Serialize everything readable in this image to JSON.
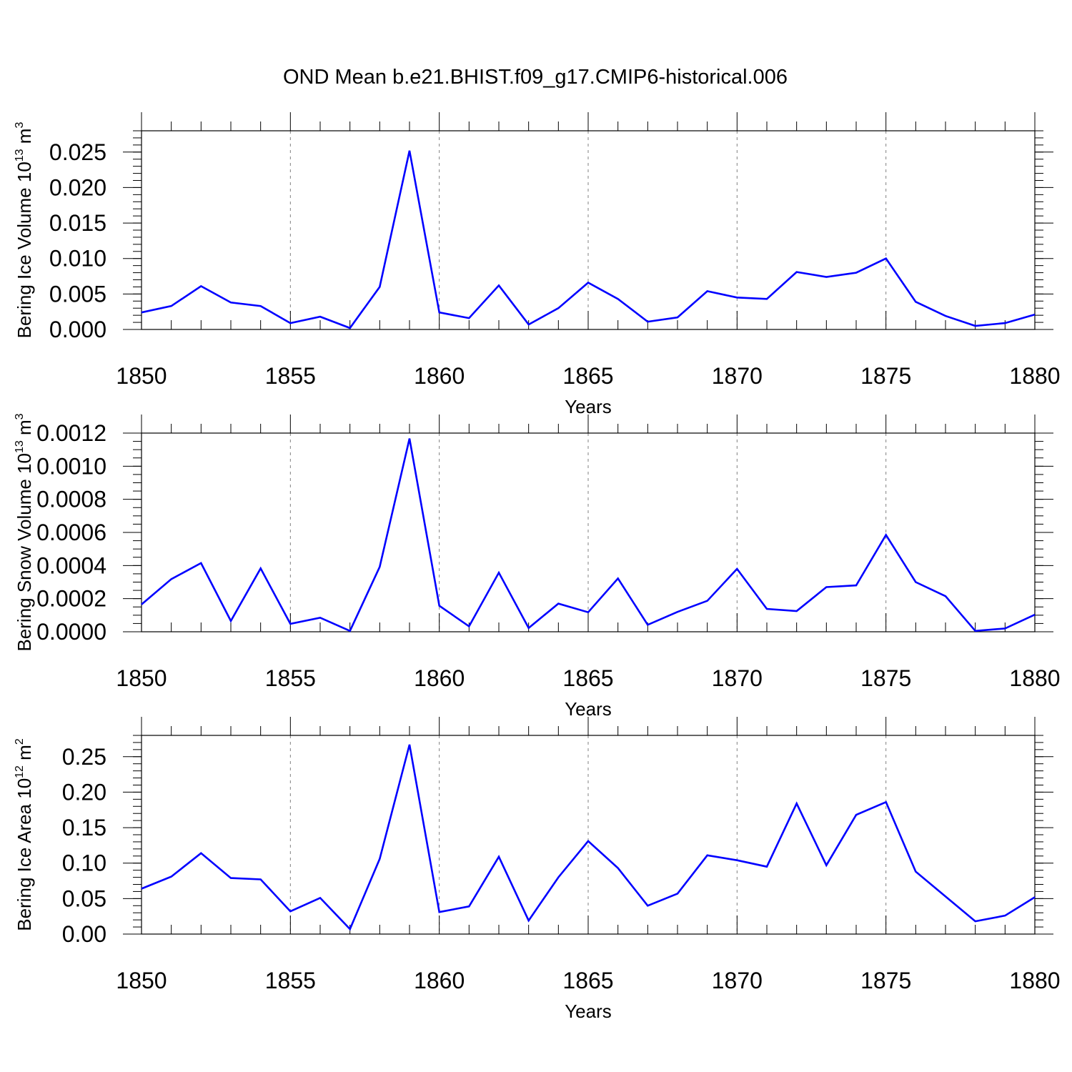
{
  "figure_title": "OND Mean b.e21.BHIST.f09_g17.CMIP6-historical.006",
  "colors": {
    "line": "#0000ff",
    "axis": "#000000",
    "grid": "#808080"
  },
  "chart_data": [
    {
      "type": "line",
      "title": "OND Mean b.e21.BHIST.f09_g17.CMIP6-historical.006",
      "xlabel": "Years",
      "ylabel": {
        "main": "Bering Ice Volume 10",
        "exp": "13",
        "unit": " m",
        "unit_exp": "3"
      },
      "xlim": [
        1850,
        1880
      ],
      "xticks": [
        1850,
        1855,
        1860,
        1865,
        1870,
        1875,
        1880
      ],
      "ylim": [
        0,
        0.028
      ],
      "yticks": [
        0,
        0.005,
        0.01,
        0.015,
        0.02,
        0.025
      ],
      "ytick_labels": [
        "0.000",
        "0.005",
        "0.010",
        "0.015",
        "0.020",
        "0.025"
      ],
      "yminor_step": 0.001,
      "grid_x": true,
      "series": [
        {
          "name": "Bering Ice Volume",
          "x": [
            1850,
            1851,
            1852,
            1853,
            1854,
            1855,
            1856,
            1857,
            1858,
            1859,
            1860,
            1861,
            1862,
            1863,
            1864,
            1865,
            1866,
            1867,
            1868,
            1869,
            1870,
            1871,
            1872,
            1873,
            1874,
            1875,
            1876,
            1877,
            1878,
            1879,
            1880
          ],
          "values": [
            0.0024,
            0.0033,
            0.0061,
            0.0038,
            0.0033,
            0.0009,
            0.0018,
            0.0002,
            0.006,
            0.0252,
            0.0024,
            0.0016,
            0.0062,
            0.0007,
            0.003,
            0.0066,
            0.0043,
            0.0011,
            0.0017,
            0.0054,
            0.0045,
            0.0043,
            0.0081,
            0.0074,
            0.008,
            0.01,
            0.0039,
            0.0019,
            0.0005,
            0.0009,
            0.0021
          ]
        }
      ]
    },
    {
      "type": "line",
      "title": "",
      "xlabel": "Years",
      "ylabel": {
        "main": "Bering Snow Volume 10",
        "exp": "13",
        "unit": " m",
        "unit_exp": "3"
      },
      "xlim": [
        1850,
        1880
      ],
      "xticks": [
        1850,
        1855,
        1860,
        1865,
        1870,
        1875,
        1880
      ],
      "ylim": [
        0,
        0.0012
      ],
      "yticks": [
        0,
        0.0002,
        0.0004,
        0.0006,
        0.0008,
        0.001,
        0.0012
      ],
      "ytick_labels": [
        "0.0000",
        "0.0002",
        "0.0004",
        "0.0006",
        "0.0008",
        "0.0010",
        "0.0012"
      ],
      "yminor_step": 5e-05,
      "grid_x": true,
      "series": [
        {
          "name": "Bering Snow Volume",
          "x": [
            1850,
            1851,
            1852,
            1853,
            1854,
            1855,
            1856,
            1857,
            1858,
            1859,
            1860,
            1861,
            1862,
            1863,
            1864,
            1865,
            1866,
            1867,
            1868,
            1869,
            1870,
            1871,
            1872,
            1873,
            1874,
            1875,
            1876,
            1877,
            1878,
            1879,
            1880
          ],
          "values": [
            0.000165,
            0.000318,
            0.000415,
            6.5e-05,
            0.000383,
            4.8e-05,
            8.5e-05,
            5e-06,
            0.000392,
            0.001167,
            0.000157,
            3.3e-05,
            0.000357,
            2.3e-05,
            0.00017,
            0.000118,
            0.000322,
            4.2e-05,
            0.00012,
            0.000187,
            0.00038,
            0.000138,
            0.000125,
            0.00027,
            0.00028,
            0.000585,
            0.0003,
            0.000215,
            5e-06,
            2e-05,
            0.000103
          ]
        }
      ]
    },
    {
      "type": "line",
      "title": "",
      "xlabel": "Years",
      "ylabel": {
        "main": "Bering Ice Area 10",
        "exp": "12",
        "unit": " m",
        "unit_exp": "2"
      },
      "xlim": [
        1850,
        1880
      ],
      "xticks": [
        1850,
        1855,
        1860,
        1865,
        1870,
        1875,
        1880
      ],
      "ylim": [
        0,
        0.28
      ],
      "yticks": [
        0,
        0.05,
        0.1,
        0.15,
        0.2,
        0.25
      ],
      "ytick_labels": [
        "0.00",
        "0.05",
        "0.10",
        "0.15",
        "0.20",
        "0.25"
      ],
      "yminor_step": 0.01,
      "grid_x": true,
      "series": [
        {
          "name": "Bering Ice Area",
          "x": [
            1850,
            1851,
            1852,
            1853,
            1854,
            1855,
            1856,
            1857,
            1858,
            1859,
            1860,
            1861,
            1862,
            1863,
            1864,
            1865,
            1866,
            1867,
            1868,
            1869,
            1870,
            1871,
            1872,
            1873,
            1874,
            1875,
            1876,
            1877,
            1878,
            1879,
            1880
          ],
          "values": [
            0.064,
            0.081,
            0.114,
            0.079,
            0.077,
            0.032,
            0.051,
            0.007,
            0.106,
            0.267,
            0.031,
            0.039,
            0.109,
            0.019,
            0.08,
            0.131,
            0.093,
            0.04,
            0.057,
            0.111,
            0.104,
            0.095,
            0.184,
            0.097,
            0.168,
            0.186,
            0.088,
            0.053,
            0.018,
            0.026,
            0.052
          ]
        }
      ]
    }
  ]
}
